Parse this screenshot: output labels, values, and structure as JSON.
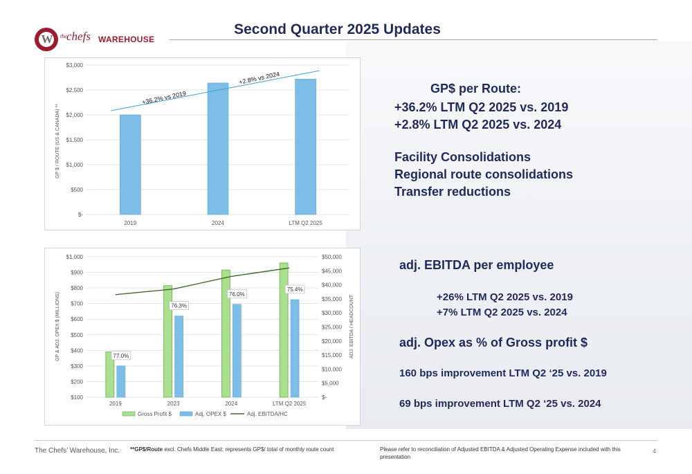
{
  "header": {
    "title": "Second Quarter 2025 Updates",
    "logo": {
      "prefix": "the",
      "name": "chefs",
      "suffix": "WAREHOUSE",
      "mark": "W"
    }
  },
  "gp_panel": {
    "title": "GP$ per Route:",
    "line1": "+36.2% LTM Q2 2025 vs. 2019",
    "line2": "+2.8% LTM Q2 2025 vs. 2024",
    "item1": "Facility Consolidations",
    "item2": "Regional route consolidations",
    "item3": "Transfer reductions"
  },
  "ebitda_panel": {
    "title": "adj. EBITDA per employee",
    "line1": "+26% LTM Q2 2025 vs. 2019",
    "line2": "+7% LTM Q2 2025 vs. 2024",
    "opex_title": "adj. Opex as % of Gross profit $",
    "opex1": "160 bps improvement LTM Q2 ‘25 vs. 2019",
    "opex2": "69 bps improvement LTM Q2 ‘25 vs. 2024"
  },
  "footer": {
    "company": "The Chefs’ Warehouse, Inc.",
    "note_bold": "**GP$/Route",
    "note_text": " excl. Chefs Middle East; represents GP$/ total of monthly route count",
    "reconciliation": "Please refer to reconciliation of Adjusted EBITDA & Adjusted Operating Expense included with this presentation",
    "page": "4"
  },
  "colors": {
    "navy": "#1f2a5c",
    "brand": "#9b1b30",
    "bar_blue": "#7dbde8",
    "bar_green": "#a9df8f",
    "ebitda_line": "#3d6b2a"
  },
  "chart_data": [
    {
      "type": "bar",
      "categories": [
        "2019",
        "2024",
        "LTM Q2 2025"
      ],
      "values": [
        2000,
        2640,
        2720
      ],
      "ylabel": "GP $ / ROUTE (US & CANADA) **",
      "ylim": [
        0,
        3000
      ],
      "yticks": [
        "$-",
        "$500",
        "$1,000",
        "$1,500",
        "$2,000",
        "$2,500",
        "$3,000"
      ],
      "ytick_values": [
        0,
        500,
        1000,
        1500,
        2000,
        2500,
        3000
      ],
      "annotations": [
        "+36.2% vs 2019",
        "+2.8% vs 2024"
      ],
      "grid": true
    },
    {
      "type": "bar",
      "categories": [
        "2019",
        "2023",
        "2024",
        "LTM Q2 2025"
      ],
      "series": [
        {
          "name": "Gross Profit $",
          "values": [
            390,
            815,
            915,
            960
          ]
        },
        {
          "name": "Adj. OPEX $",
          "values": [
            300,
            620,
            695,
            725
          ],
          "labels": [
            "77.0%",
            "76.3%",
            "76.0%",
            "75.4%"
          ]
        },
        {
          "name": "Adj. EBITDA/HC",
          "type": "line",
          "axis": "right",
          "values": [
            36500,
            38500,
            43000,
            46000
          ]
        }
      ],
      "ylabel": "GP & ADJ. OPEX $ (MILLIONS)",
      "y2label": "ADJ. EBITDA / HEADCOUNT",
      "ylim": [
        100,
        1000
      ],
      "y2lim": [
        0,
        50000
      ],
      "yticks": [
        "$100",
        "$200",
        "$300",
        "$400",
        "$500",
        "$600",
        "$700",
        "$800",
        "$900",
        "$1,000"
      ],
      "ytick_values": [
        100,
        200,
        300,
        400,
        500,
        600,
        700,
        800,
        900,
        1000
      ],
      "y2ticks": [
        "$-",
        "$5,000",
        "$10,000",
        "$15,000",
        "$20,000",
        "$25,000",
        "$30,000",
        "$35,000",
        "$40,000",
        "$45,000",
        "$50,000"
      ],
      "y2tick_values": [
        0,
        5000,
        10000,
        15000,
        20000,
        25000,
        30000,
        35000,
        40000,
        45000,
        50000
      ],
      "legend": "bottom",
      "grid": true
    }
  ]
}
